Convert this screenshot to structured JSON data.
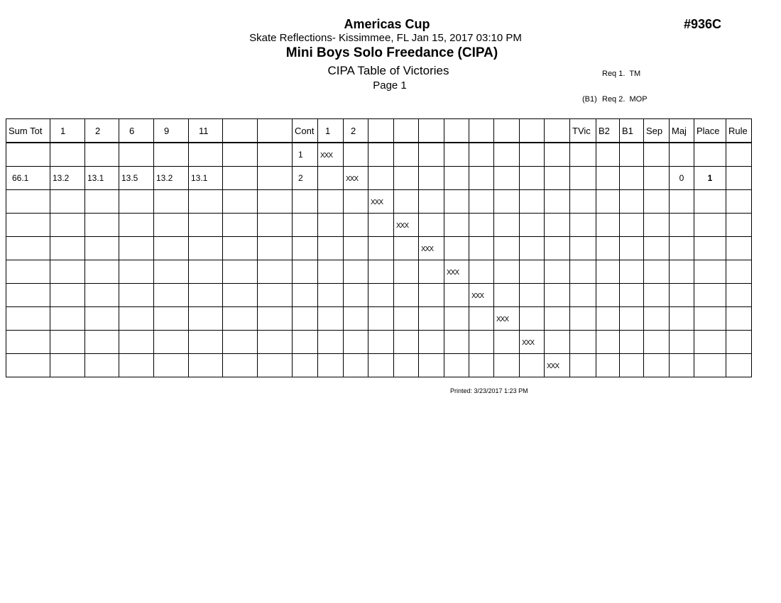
{
  "header": {
    "title": "Americas Cup",
    "event_number": "#936C",
    "venue_date": "Skate Reflections- Kissimmee, FL  Jan 15, 2017  03:10 PM",
    "event_name": "Mini Boys Solo Freedance (CIPA)",
    "report_name": "CIPA Table of Victories",
    "page": "Page 1",
    "requirements": [
      {
        "prefix": "",
        "text": "Req 1.  TM"
      },
      {
        "prefix": "(B1)",
        "text": "Req 2.  MOP"
      }
    ]
  },
  "table": {
    "columns": [
      "Sum Tot",
      "1",
      "2",
      "6",
      "9",
      "11",
      "",
      "",
      "Cont",
      "1",
      "2",
      "",
      "",
      "",
      "",
      "",
      "",
      "",
      "",
      "TVic",
      "B2",
      "B1",
      "Sep",
      "Maj",
      "Place",
      "Rule"
    ],
    "mark": "XXX",
    "rows": [
      {
        "cells": [
          "",
          "",
          "",
          "",
          "",
          "",
          "",
          "",
          "1",
          "",
          "",
          "",
          "",
          "",
          "",
          "",
          "",
          "",
          "",
          "",
          "",
          "",
          "",
          "",
          "",
          ""
        ],
        "mark_col": 9
      },
      {
        "cells": [
          "66.1",
          "13.2",
          "13.1",
          "13.5",
          "13.2",
          "13.1",
          "",
          "",
          "2",
          "",
          "",
          "",
          "",
          "",
          "",
          "",
          "",
          "",
          "",
          "",
          "",
          "",
          "",
          "0",
          "1",
          ""
        ],
        "mark_col": 10
      },
      {
        "cells": [],
        "mark_col": 11
      },
      {
        "cells": [],
        "mark_col": 12
      },
      {
        "cells": [],
        "mark_col": 13
      },
      {
        "cells": [],
        "mark_col": 14
      },
      {
        "cells": [],
        "mark_col": 15
      },
      {
        "cells": [],
        "mark_col": 16
      },
      {
        "cells": [],
        "mark_col": 17
      },
      {
        "cells": [],
        "mark_col": 18
      }
    ]
  },
  "footer": {
    "printed": "Printed:  3/23/2017  1:23 PM"
  }
}
